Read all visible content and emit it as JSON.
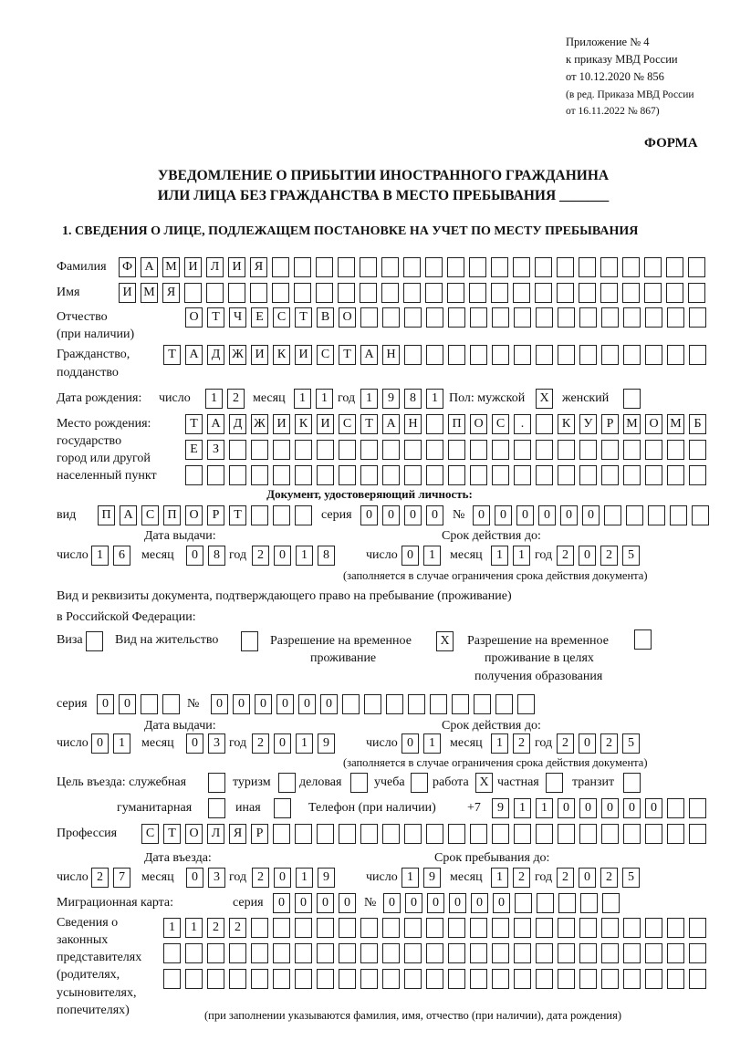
{
  "header": {
    "appendix": [
      "Приложение № 4",
      "к приказу МВД России",
      "от 10.12.2020 № 856"
    ],
    "amendment": [
      "(в ред. Приказа МВД России",
      "от 16.11.2022 № 867)"
    ],
    "forma": "ФОРМА",
    "title": [
      "УВЕДОМЛЕНИЕ О ПРИБЫТИИ ИНОСТРАННОГО ГРАЖДАНИНА",
      "ИЛИ ЛИЦА БЕЗ ГРАЖДАНСТВА В МЕСТО ПРЕБЫВАНИЯ _______"
    ],
    "section1": "1. СВЕДЕНИЯ О ЛИЦЕ, ПОДЛЕЖАЩЕМ ПОСТАНОВКЕ НА УЧЕТ ПО МЕСТУ ПРЕБЫВАНИЯ"
  },
  "labels": {
    "surname": "Фамилия",
    "name": "Имя",
    "patronymic": [
      "Отчество",
      "(при наличии)"
    ],
    "citizenship": [
      "Гражданство,",
      "подданство"
    ],
    "birth_date": "Дата рождения:",
    "day": "число",
    "month": "месяц",
    "year": "год",
    "sex": "Пол: мужской",
    "female": "женский",
    "birth_place": [
      "Место рождения:",
      "государство",
      "город или другой",
      "населенный пункт"
    ],
    "id_doc": "Документ, удостоверяющий личность:",
    "kind": "вид",
    "series": "серия",
    "number": "№",
    "issue_date": "Дата выдачи:",
    "valid_until": "Срок действия до:",
    "validity_note": "(заполняется в случае ограничения срока действия документа)",
    "stay_doc": [
      "Вид и реквизиты документа, подтверждающего право на пребывание (проживание)",
      "в Российской Федерации:"
    ],
    "visa": "Виза",
    "residence_permit": "Вид на жительство",
    "temp_permit": [
      "Разрешение на временное",
      "проживание"
    ],
    "temp_permit_edu": [
      "Разрешение на временное",
      "проживание в целях",
      "получения образования"
    ],
    "purpose": "Цель въезда: служебная",
    "tourism": "туризм",
    "business": "деловая",
    "study": "учеба",
    "work": "работа",
    "private": "частная",
    "transit": "транзит",
    "humanitarian": "гуманитарная",
    "other": "иная",
    "phone": "Телефон (при наличии)",
    "phone_prefix": "+7",
    "profession": "Профессия",
    "entry_date": "Дата въезда:",
    "stay_until": "Срок пребывания до:",
    "migration_card": "Миграционная карта:",
    "representatives": [
      "Сведения о",
      "законных",
      "представителях",
      "(родителях,",
      "усыновителях,",
      "попечителях)"
    ],
    "representatives_note": "(при заполнении указываются фамилия, имя, отчество (при наличии), дата рождения)"
  },
  "person": {
    "surname": "ФАМИЛИЯ",
    "name": "ИМЯ",
    "patronymic": "ОТЧЕСТВО",
    "citizenship": "ТАДЖИКИСТАН",
    "birth_day": "12",
    "birth_month": "11",
    "birth_year": "1981",
    "sex_male": "X",
    "sex_female": "",
    "birth_place_1": "ТАДЖИКИСТАН ПОС. КУРМОМБ",
    "birth_place_2": "ЕЗ",
    "birth_place_3": "",
    "doc_kind": "ПАСПОРТ",
    "doc_series": "0000",
    "doc_number": "000000",
    "doc_issue_day": "16",
    "doc_issue_month": "08",
    "doc_issue_year": "2018",
    "doc_valid_day": "01",
    "doc_valid_month": "11",
    "doc_valid_year": "2025"
  },
  "stay_doc": {
    "visa": "",
    "residence_permit": "",
    "temp_permit": "X",
    "temp_permit_edu": "",
    "series": "00",
    "number": "000000",
    "issue_day": "01",
    "issue_month": "03",
    "issue_year": "2019",
    "valid_day": "01",
    "valid_month": "12",
    "valid_year": "2025"
  },
  "purpose": {
    "official": "",
    "tourism": "",
    "business": "",
    "study": "",
    "work": "X",
    "private": "",
    "transit": "",
    "humanitarian": "",
    "other": ""
  },
  "phone": "91100000",
  "profession": "СТОЛЯР",
  "entry": {
    "day": "27",
    "month": "03",
    "year": "2019",
    "until_day": "19",
    "until_month": "12",
    "until_year": "2025"
  },
  "migration_card": {
    "series": "0000",
    "number": "000000"
  },
  "representatives": {
    "row1": "1122",
    "row2": "",
    "row3": ""
  }
}
